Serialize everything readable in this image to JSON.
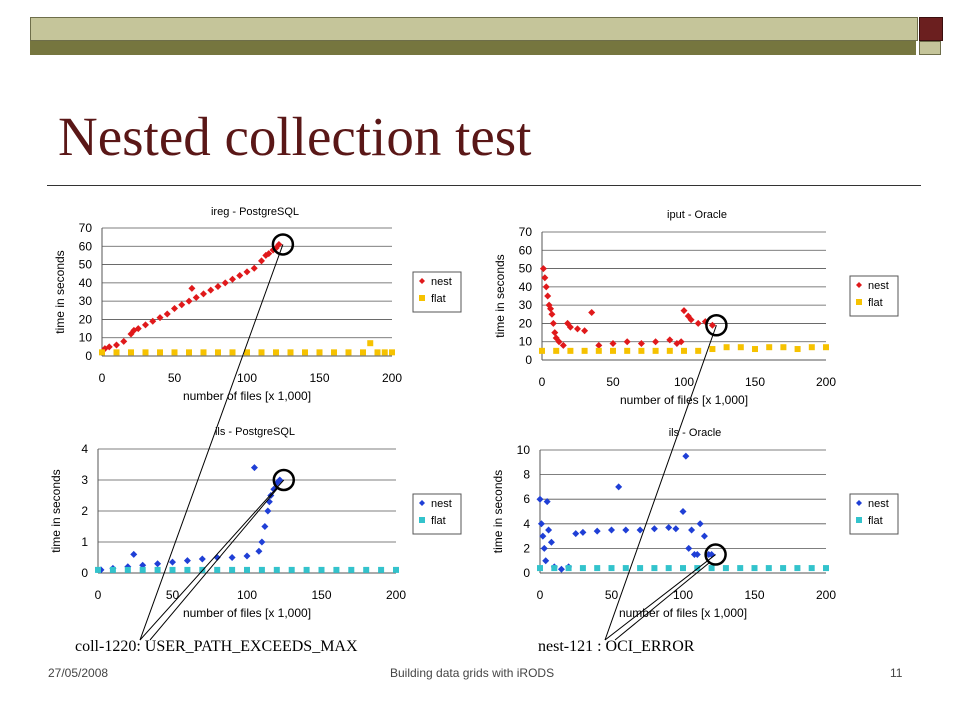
{
  "slide": {
    "title": "Nested collection test",
    "footer_date": "27/05/2008",
    "footer_title": "Building data grids with iRODS",
    "page_number": "11",
    "annotation_left": "coll-1220: USER_PATH_EXCEEDS_MAX",
    "annotation_right": "nest-121 : OCI_ERROR",
    "colors": {
      "title": "#5a1717",
      "bar_light": "#c5c59a",
      "bar_dark": "#76763f",
      "square": "#6b1f1f"
    }
  },
  "chart_data": [
    {
      "type": "scatter",
      "title": "ireg - PostgreSQL",
      "xlabel": "number of files [x 1,000]",
      "ylabel": "time in seconds",
      "xlim": [
        0,
        200
      ],
      "ylim": [
        0,
        70
      ],
      "xticks": [
        0,
        50,
        100,
        150,
        200
      ],
      "yticks": [
        0,
        10,
        20,
        30,
        40,
        50,
        60,
        70
      ],
      "legend": "right",
      "grid": true,
      "series": [
        {
          "name": "nest",
          "color": "#e0191b",
          "marker": "diamond",
          "x": [
            2,
            5,
            10,
            15,
            20,
            22,
            25,
            30,
            35,
            40,
            45,
            50,
            55,
            60,
            62,
            65,
            70,
            75,
            80,
            85,
            90,
            95,
            100,
            105,
            110,
            113,
            115,
            118,
            120,
            122
          ],
          "y": [
            4,
            5,
            6,
            8,
            12,
            14,
            15,
            17,
            19,
            21,
            23,
            26,
            28,
            30,
            37,
            32,
            34,
            36,
            38,
            40,
            42,
            44,
            46,
            48,
            52,
            55,
            56,
            58,
            59,
            61
          ]
        },
        {
          "name": "flat",
          "color": "#f6c200",
          "marker": "square",
          "x": [
            0,
            10,
            20,
            30,
            40,
            50,
            60,
            70,
            80,
            90,
            100,
            110,
            120,
            130,
            140,
            150,
            160,
            170,
            180,
            185,
            190,
            195,
            200
          ],
          "y": [
            2,
            2,
            2,
            2,
            2,
            2,
            2,
            2,
            2,
            2,
            2,
            2,
            2,
            2,
            2,
            2,
            2,
            2,
            2,
            7,
            2,
            2,
            2
          ]
        }
      ]
    },
    {
      "type": "scatter",
      "title": "iput - Oracle",
      "xlabel": "number of files [x 1,000]",
      "ylabel": "time in seconds",
      "xlim": [
        0,
        200
      ],
      "ylim": [
        0,
        70
      ],
      "xticks": [
        0,
        50,
        100,
        150,
        200
      ],
      "yticks": [
        0,
        10,
        20,
        30,
        40,
        50,
        60,
        70
      ],
      "legend": "right",
      "grid": true,
      "series": [
        {
          "name": "nest",
          "color": "#e0191b",
          "marker": "diamond",
          "x": [
            1,
            2,
            3,
            4,
            5,
            6,
            7,
            8,
            9,
            10,
            12,
            15,
            18,
            20,
            25,
            30,
            35,
            40,
            50,
            60,
            70,
            80,
            90,
            95,
            98,
            100,
            103,
            105,
            110,
            115,
            120
          ],
          "y": [
            50,
            45,
            40,
            35,
            30,
            28,
            25,
            20,
            15,
            12,
            10,
            8,
            20,
            18,
            17,
            16,
            26,
            8,
            9,
            10,
            9,
            10,
            11,
            9,
            10,
            27,
            24,
            22,
            20,
            21,
            19
          ]
        },
        {
          "name": "flat",
          "color": "#f6c200",
          "marker": "square",
          "x": [
            0,
            10,
            20,
            30,
            40,
            50,
            60,
            70,
            80,
            90,
            100,
            110,
            120,
            130,
            140,
            150,
            160,
            170,
            180,
            190,
            200
          ],
          "y": [
            5,
            5,
            5,
            5,
            5,
            5,
            5,
            5,
            5,
            5,
            5,
            5,
            6,
            7,
            7,
            6,
            7,
            7,
            6,
            7,
            7
          ]
        }
      ]
    },
    {
      "type": "scatter",
      "title": "ils - PostgreSQL",
      "xlabel": "number of files [x 1,000]",
      "ylabel": "time in seconds",
      "xlim": [
        0,
        200
      ],
      "ylim": [
        0,
        4
      ],
      "xticks": [
        0,
        50,
        100,
        150,
        200
      ],
      "yticks": [
        0,
        1,
        2,
        3,
        4
      ],
      "legend": "right",
      "grid": true,
      "series": [
        {
          "name": "nest",
          "color": "#1f3fd6",
          "marker": "diamond",
          "x": [
            2,
            10,
            20,
            24,
            30,
            40,
            50,
            60,
            70,
            80,
            90,
            100,
            105,
            108,
            110,
            112,
            114,
            115,
            116,
            118,
            120,
            122
          ],
          "y": [
            0.1,
            0.15,
            0.2,
            0.6,
            0.25,
            0.3,
            0.35,
            0.4,
            0.45,
            0.5,
            0.5,
            0.55,
            3.4,
            0.7,
            1.0,
            1.5,
            2.0,
            2.3,
            2.5,
            2.7,
            2.9,
            3.0
          ]
        },
        {
          "name": "flat",
          "color": "#33c3cc",
          "marker": "square",
          "x": [
            0,
            10,
            20,
            30,
            40,
            50,
            60,
            70,
            80,
            90,
            100,
            110,
            120,
            130,
            140,
            150,
            160,
            170,
            180,
            190,
            200
          ],
          "y": [
            0.1,
            0.1,
            0.1,
            0.1,
            0.1,
            0.1,
            0.1,
            0.1,
            0.1,
            0.1,
            0.1,
            0.1,
            0.1,
            0.1,
            0.1,
            0.1,
            0.1,
            0.1,
            0.1,
            0.1,
            0.1
          ]
        }
      ]
    },
    {
      "type": "scatter",
      "title": "ils - Oracle",
      "xlabel": "number of files [x 1,000]",
      "ylabel": "time in seconds",
      "xlim": [
        0,
        200
      ],
      "ylim": [
        0,
        10
      ],
      "xticks": [
        0,
        50,
        100,
        150,
        200
      ],
      "yticks": [
        0,
        2,
        4,
        6,
        8,
        10
      ],
      "legend": "right",
      "grid": true,
      "series": [
        {
          "name": "nest",
          "color": "#1f3fd6",
          "marker": "diamond",
          "x": [
            0,
            1,
            2,
            3,
            4,
            5,
            6,
            8,
            10,
            15,
            20,
            25,
            30,
            40,
            50,
            55,
            60,
            70,
            80,
            90,
            95,
            100,
            102,
            104,
            106,
            108,
            110,
            112,
            115,
            118,
            120
          ],
          "y": [
            6.0,
            4.0,
            3.0,
            2.0,
            1.0,
            5.8,
            3.5,
            2.5,
            0.5,
            0.3,
            0.5,
            3.2,
            3.3,
            3.4,
            3.5,
            7.0,
            3.5,
            3.5,
            3.6,
            3.7,
            3.6,
            5.0,
            9.5,
            2.0,
            3.5,
            1.5,
            1.5,
            4.0,
            3.0,
            1.5,
            1.5
          ]
        },
        {
          "name": "flat",
          "color": "#33c3cc",
          "marker": "square",
          "x": [
            0,
            10,
            20,
            30,
            40,
            50,
            60,
            70,
            80,
            90,
            100,
            110,
            120,
            130,
            140,
            150,
            160,
            170,
            180,
            190,
            200
          ],
          "y": [
            0.4,
            0.4,
            0.4,
            0.4,
            0.4,
            0.4,
            0.4,
            0.4,
            0.4,
            0.4,
            0.4,
            0.4,
            0.4,
            0.4,
            0.4,
            0.4,
            0.4,
            0.4,
            0.4,
            0.4,
            0.4
          ]
        }
      ]
    }
  ]
}
